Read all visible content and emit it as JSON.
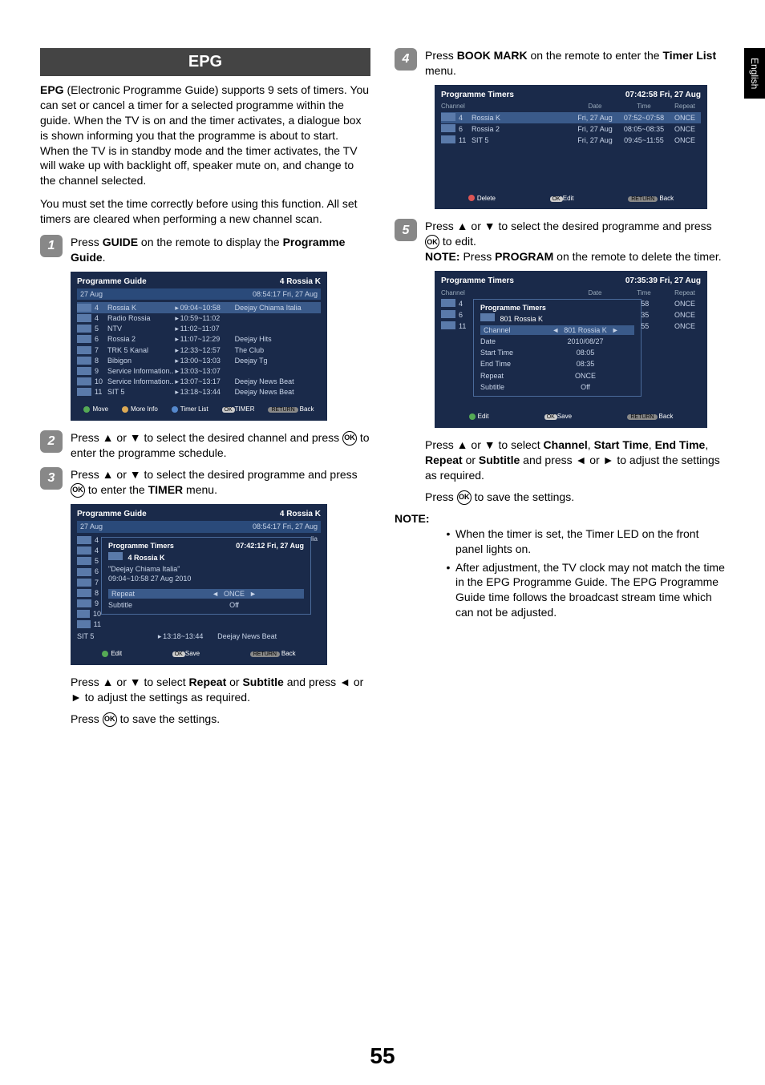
{
  "page_number": "55",
  "side_tab": "English",
  "section_title": "EPG",
  "intro_para": "EPG (Electronic Programme Guide) supports 9 sets of timers. You can set or cancel a timer for a selected programme within the guide. When the TV is on and the timer activates, a dialogue box is shown informing you that the programme is about to start. When the TV is in standby mode and the timer activates, the TV will wake up with backlight off, speaker mute on, and change to the channel selected.",
  "intro_bold_word": "EPG",
  "intro_para2": "You must set the time correctly before using this function. All set timers are cleared when performing a new channel scan.",
  "step1": {
    "num": "1",
    "pre": "Press ",
    "b1": "GUIDE",
    "mid": " on the remote to display the ",
    "b2": "Programme Guide",
    "post": "."
  },
  "shot1": {
    "title": "Programme Guide",
    "right": "4 Rossia K",
    "date": "27 Aug",
    "date_right": "08:54:17   Fri, 27 Aug",
    "rows": [
      {
        "n": "4",
        "name": "Rossia K",
        "t": "09:04~10:58",
        "p": "Deejay Chiama Italia",
        "hl": true
      },
      {
        "n": "4",
        "name": "Radio Rossia",
        "t": "10:59~11:02",
        "p": ""
      },
      {
        "n": "5",
        "name": "NTV",
        "t": "11:02~11:07",
        "p": ""
      },
      {
        "n": "6",
        "name": "Rossia 2",
        "t": "11:07~12:29",
        "p": "Deejay Hits"
      },
      {
        "n": "7",
        "name": "TRK 5 Kanal",
        "t": "12:33~12:57",
        "p": "The Club"
      },
      {
        "n": "8",
        "name": "Bibigon",
        "t": "13:00~13:03",
        "p": "Deejay Tg"
      },
      {
        "n": "9",
        "name": "Service Information..",
        "t": "13:03~13:07",
        "p": ""
      },
      {
        "n": "10",
        "name": "Service Information..",
        "t": "13:07~13:17",
        "p": "Deejay News Beat"
      },
      {
        "n": "11",
        "name": "SIT 5",
        "t": "13:18~13:44",
        "p": "Deejay News Beat"
      }
    ],
    "footer": {
      "f1": "Move",
      "f2": "More Info",
      "f3": "Timer List",
      "f4": "TIMER",
      "f5": "Back",
      "ok": "OK",
      "ret": "RETURN"
    }
  },
  "step2": {
    "num": "2",
    "text": "Press ▲ or ▼ to select the desired channel and press ",
    "post": " to enter the programme schedule."
  },
  "step3": {
    "num": "3",
    "text": "Press ▲ or ▼ to select the desired programme and press ",
    "mid": " to enter the ",
    "b1": "TIMER",
    "post": " menu."
  },
  "shot2": {
    "title": "Programme Guide",
    "right": "4 Rossia K",
    "date": "27 Aug",
    "date_right": "08:54:17   Fri, 27 Aug",
    "overlay_title": "Programme Timers",
    "overlay_right": "07:42:12  Fri, 27 Aug",
    "ch_line": "4 Rossia K",
    "prog_line": "\"Deejay Chiama Italia\"",
    "time_line": "09:04~10:58 27 Aug 2010",
    "r1_label": "Repeat",
    "r1_val": "ONCE",
    "r2_label": "Subtitle",
    "r2_val": "Off",
    "bottom_row_name": "SIT 5",
    "bottom_row_t": "13:18~13:44",
    "bottom_row_p": "Deejay News Beat",
    "footer": {
      "f1": "Edit",
      "f2": "Save",
      "f3": "Back",
      "ok": "OK",
      "ret": "RETURN"
    },
    "suffix": "lia"
  },
  "after_shot2_a": "Press ▲ or ▼ to select ",
  "after_shot2_b1": "Repeat",
  "after_shot2_mid": " or ",
  "after_shot2_b2": "Subtitle",
  "after_shot2_c": " and press ◄ or ► to adjust the settings as required.",
  "after_shot2_save_pre": "Press ",
  "after_shot2_save_post": " to save the settings.",
  "step4": {
    "num": "4",
    "pre": "Press ",
    "b1": "BOOK MARK",
    "mid": " on the remote to enter the ",
    "b2": "Timer List",
    "post": " menu."
  },
  "shot3": {
    "title": "Programme Timers",
    "right": "07:42:58   Fri, 27 Aug",
    "head": {
      "c1": "Channel",
      "c2": "Date",
      "c3": "Time",
      "c4": "Repeat"
    },
    "rows": [
      {
        "n": "4",
        "name": "Rossia K",
        "d": "Fri, 27 Aug",
        "t": "07:52~07:58",
        "r": "ONCE",
        "hl": true
      },
      {
        "n": "6",
        "name": "Rossia 2",
        "d": "Fri, 27 Aug",
        "t": "08:05~08:35",
        "r": "ONCE"
      },
      {
        "n": "11",
        "name": "SIT 5",
        "d": "Fri, 27 Aug",
        "t": "09:45~11:55",
        "r": "ONCE"
      }
    ],
    "footer": {
      "f1": "Delete",
      "f2": "Edit",
      "f3": "Back",
      "ok": "OK",
      "ret": "RETURN"
    }
  },
  "step5": {
    "num": "5",
    "text": "Press ▲ or ▼ to select the desired programme and press ",
    "post": " to edit.",
    "note_b": "NOTE:",
    "note_pre": " Press ",
    "note_b2": "PROGRAM",
    "note_post": " on the remote to delete the timer."
  },
  "shot5": {
    "title": "Programme Timers",
    "right": "07:35:39   Fri, 27 Aug",
    "head": {
      "c1": "Channel",
      "c2": "Date",
      "c3": "Time",
      "c4": "Repeat"
    },
    "bg_rows": [
      {
        "n": "4",
        "t": ":58",
        "r": "ONCE"
      },
      {
        "n": "6",
        "t": ":35",
        "r": "ONCE"
      },
      {
        "n": "11",
        "t": ":55",
        "r": "ONCE"
      }
    ],
    "ov_title": "Programme Timers",
    "ov_ch": "801 Rossia K",
    "rows": [
      {
        "l": "Channel",
        "v": "801 Rossia K",
        "hl": true,
        "arrows": true
      },
      {
        "l": "Date",
        "v": "2010/08/27"
      },
      {
        "l": "Start Time",
        "v": "08:05"
      },
      {
        "l": "End Time",
        "v": "08:35"
      },
      {
        "l": "Repeat",
        "v": "ONCE"
      },
      {
        "l": "Subtitle",
        "v": "Off"
      }
    ],
    "footer": {
      "f1": "Edit",
      "f2": "Save",
      "f3": "Back",
      "ok": "OK",
      "ret": "RETURN"
    }
  },
  "after5_a": "Press ▲ or ▼ to select ",
  "after5_b1": "Channel",
  "after5_c1": ", ",
  "after5_b2": "Start Time",
  "after5_c2": ", ",
  "after5_b3": "End Time",
  "after5_c3": ", ",
  "after5_b4": "Repeat",
  "after5_c4": " or ",
  "after5_b5": "Subtitle",
  "after5_d": " and press ◄ or ► to adjust the settings as required.",
  "after5_save_pre": "Press ",
  "after5_save_post": " to save the settings.",
  "note_label": "NOTE:",
  "note_bullets": [
    "When the timer is set, the Timer LED on the front panel lights on.",
    "After adjustment, the TV clock may not match the time in the EPG Programme Guide. The EPG Programme Guide time follows the broadcast stream time which can not be adjusted."
  ],
  "ok_label": "OK",
  "colors": {
    "section_bg": "#444444",
    "shot_bg": "#1a2a4a",
    "shot_hl": "#3a5a8a",
    "step_bg": "#888888"
  }
}
